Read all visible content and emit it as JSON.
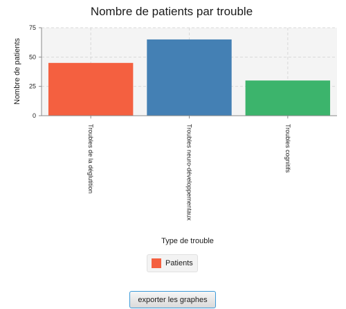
{
  "chart_data": {
    "type": "bar",
    "title": "Nombre de patients par trouble",
    "xlabel": "Type de trouble",
    "ylabel": "Nombre de patients",
    "categories": [
      "Troubles de la déglutition",
      "Troubles neuro-développementaux",
      "Troubles cognitifs"
    ],
    "series": [
      {
        "name": "Patients",
        "values": [
          45,
          65,
          30
        ]
      }
    ],
    "bar_colors": [
      "#f46040",
      "#4480b4",
      "#3cb46c"
    ],
    "ylim": [
      0,
      75
    ],
    "yticks": [
      "0",
      "25",
      "50",
      "75"
    ],
    "grid": true,
    "legend_position": "bottom"
  },
  "legend": {
    "label": "Patients",
    "color": "#f46040"
  },
  "export_button": {
    "label": "exporter les graphes"
  }
}
